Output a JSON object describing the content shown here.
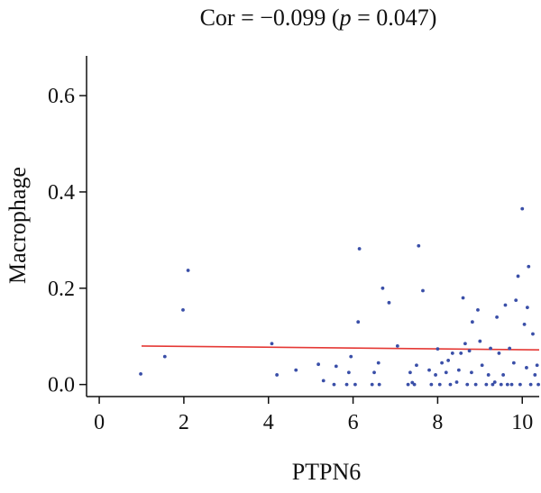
{
  "chart_data": {
    "type": "scatter",
    "title": {
      "prefix": "Cor = −0.099 (",
      "p_symbol": "p",
      "suffix": " = 0.047)"
    },
    "xlabel": "PTPN6",
    "ylabel": "Macrophage",
    "xlim": [
      -0.3,
      10.4
    ],
    "ylim": [
      -0.025,
      0.72
    ],
    "xticks": [
      0,
      2,
      4,
      6,
      8,
      10
    ],
    "xtick_labels": [
      "0",
      "2",
      "4",
      "6",
      "8",
      "10"
    ],
    "yticks": [
      0.0,
      0.2,
      0.4,
      0.6
    ],
    "ytick_labels": [
      "0.0",
      "0.2",
      "0.4",
      "0.6"
    ],
    "grid": false,
    "colors": {
      "points": "#3a4fa8",
      "fit_line": "#e53935",
      "axes": "#111111"
    },
    "points": [
      {
        "x": 0.98,
        "y": 0.022
      },
      {
        "x": 1.55,
        "y": 0.058
      },
      {
        "x": 1.98,
        "y": 0.155
      },
      {
        "x": 2.1,
        "y": 0.237
      },
      {
        "x": 4.08,
        "y": 0.085
      },
      {
        "x": 4.2,
        "y": 0.02
      },
      {
        "x": 4.65,
        "y": 0.03
      },
      {
        "x": 5.18,
        "y": 0.042
      },
      {
        "x": 5.3,
        "y": 0.008
      },
      {
        "x": 5.55,
        "y": 0.0
      },
      {
        "x": 5.6,
        "y": 0.038
      },
      {
        "x": 5.85,
        "y": 0.0
      },
      {
        "x": 5.9,
        "y": 0.025
      },
      {
        "x": 5.95,
        "y": 0.058
      },
      {
        "x": 6.05,
        "y": 0.0
      },
      {
        "x": 6.12,
        "y": 0.13
      },
      {
        "x": 6.15,
        "y": 0.282
      },
      {
        "x": 6.45,
        "y": 0.0
      },
      {
        "x": 6.5,
        "y": 0.025
      },
      {
        "x": 6.6,
        "y": 0.045
      },
      {
        "x": 6.62,
        "y": 0.0
      },
      {
        "x": 6.7,
        "y": 0.2
      },
      {
        "x": 6.85,
        "y": 0.17
      },
      {
        "x": 7.05,
        "y": 0.08
      },
      {
        "x": 7.3,
        "y": 0.0
      },
      {
        "x": 7.35,
        "y": 0.025
      },
      {
        "x": 7.4,
        "y": 0.004
      },
      {
        "x": 7.45,
        "y": 0.0
      },
      {
        "x": 7.5,
        "y": 0.04
      },
      {
        "x": 7.55,
        "y": 0.288
      },
      {
        "x": 7.65,
        "y": 0.195
      },
      {
        "x": 7.8,
        "y": 0.03
      },
      {
        "x": 7.85,
        "y": 0.0
      },
      {
        "x": 7.95,
        "y": 0.02
      },
      {
        "x": 8.0,
        "y": 0.074
      },
      {
        "x": 8.05,
        "y": 0.0
      },
      {
        "x": 8.1,
        "y": 0.045
      },
      {
        "x": 8.2,
        "y": 0.025
      },
      {
        "x": 8.25,
        "y": 0.05
      },
      {
        "x": 8.3,
        "y": 0.0
      },
      {
        "x": 8.35,
        "y": 0.065
      },
      {
        "x": 8.45,
        "y": 0.005
      },
      {
        "x": 8.5,
        "y": 0.03
      },
      {
        "x": 8.55,
        "y": 0.065
      },
      {
        "x": 8.6,
        "y": 0.18
      },
      {
        "x": 8.65,
        "y": 0.085
      },
      {
        "x": 8.7,
        "y": 0.0
      },
      {
        "x": 8.75,
        "y": 0.07
      },
      {
        "x": 8.8,
        "y": 0.025
      },
      {
        "x": 8.82,
        "y": 0.13
      },
      {
        "x": 8.9,
        "y": 0.0
      },
      {
        "x": 8.95,
        "y": 0.155
      },
      {
        "x": 9.0,
        "y": 0.09
      },
      {
        "x": 9.05,
        "y": 0.04
      },
      {
        "x": 9.15,
        "y": 0.0
      },
      {
        "x": 9.2,
        "y": 0.02
      },
      {
        "x": 9.25,
        "y": 0.075
      },
      {
        "x": 9.3,
        "y": 0.0
      },
      {
        "x": 9.35,
        "y": 0.005
      },
      {
        "x": 9.4,
        "y": 0.14
      },
      {
        "x": 9.45,
        "y": 0.065
      },
      {
        "x": 9.5,
        "y": 0.0
      },
      {
        "x": 9.55,
        "y": 0.02
      },
      {
        "x": 9.6,
        "y": 0.165
      },
      {
        "x": 9.65,
        "y": 0.0
      },
      {
        "x": 9.7,
        "y": 0.075
      },
      {
        "x": 9.75,
        "y": 0.0
      },
      {
        "x": 9.8,
        "y": 0.045
      },
      {
        "x": 9.85,
        "y": 0.175
      },
      {
        "x": 9.9,
        "y": 0.225
      },
      {
        "x": 9.95,
        "y": 0.0
      },
      {
        "x": 10.0,
        "y": 0.365
      },
      {
        "x": 10.05,
        "y": 0.125
      },
      {
        "x": 10.1,
        "y": 0.035
      },
      {
        "x": 10.12,
        "y": 0.16
      },
      {
        "x": 10.15,
        "y": 0.245
      },
      {
        "x": 10.2,
        "y": 0.0
      },
      {
        "x": 10.25,
        "y": 0.105
      },
      {
        "x": 10.3,
        "y": 0.02
      },
      {
        "x": 10.35,
        "y": 0.04
      },
      {
        "x": 10.38,
        "y": 0.0
      }
    ],
    "fit_line": {
      "x": [
        1.0,
        10.4
      ],
      "y": [
        0.08,
        0.072
      ]
    }
  }
}
